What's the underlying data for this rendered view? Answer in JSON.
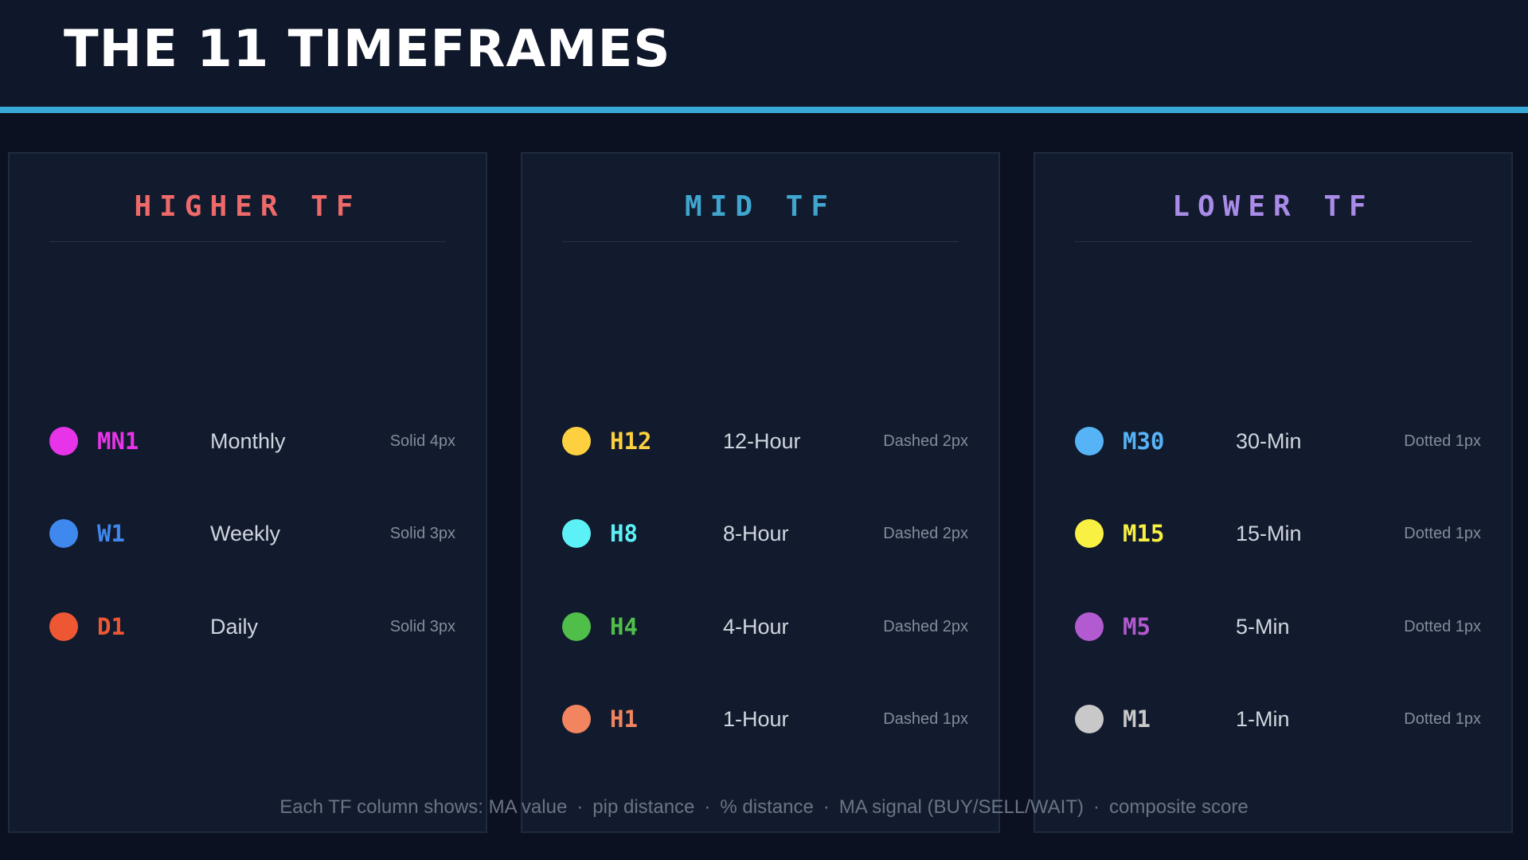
{
  "header": {
    "title": "THE 11 TIMEFRAMES"
  },
  "colors": {
    "accent_line": "#38a8d6",
    "background": "#0b1120",
    "panel": "#121a2d"
  },
  "groups": [
    {
      "title": "HIGHER TF",
      "title_color": "#ee6a6a",
      "items": [
        {
          "code": "MN1",
          "name": "Monthly",
          "style": "Solid 4px",
          "color": "#e834e8"
        },
        {
          "code": "W1",
          "name": "Weekly",
          "style": "Solid 3px",
          "color": "#3f88ee"
        },
        {
          "code": "D1",
          "name": "Daily",
          "style": "Solid 3px",
          "color": "#ee5733"
        }
      ]
    },
    {
      "title": "MID TF",
      "title_color": "#3fa6cf",
      "items": [
        {
          "code": "H12",
          "name": "12-Hour",
          "style": "Dashed 2px",
          "color": "#fdd03f"
        },
        {
          "code": "H8",
          "name": "8-Hour",
          "style": "Dashed 2px",
          "color": "#5cf1f6"
        },
        {
          "code": "H4",
          "name": "4-Hour",
          "style": "Dashed 2px",
          "color": "#4fbf49"
        },
        {
          "code": "H1",
          "name": "1-Hour",
          "style": "Dashed 1px",
          "color": "#f2845f"
        }
      ]
    },
    {
      "title": "LOWER TF",
      "title_color": "#a98be8",
      "items": [
        {
          "code": "M30",
          "name": "30-Min",
          "style": "Dotted 1px",
          "color": "#56b4f6"
        },
        {
          "code": "M15",
          "name": "15-Min",
          "style": "Dotted 1px",
          "color": "#f8f042"
        },
        {
          "code": "M5",
          "name": "5-Min",
          "style": "Dotted 1px",
          "color": "#b25ad0"
        },
        {
          "code": "M1",
          "name": "1-Min",
          "style": "Dotted 1px",
          "color": "#c8c8c8"
        }
      ]
    }
  ],
  "footer": {
    "parts": [
      "Each TF column shows: MA value",
      "pip distance",
      "% distance",
      "MA signal (BUY/SELL/WAIT)",
      "composite score"
    ],
    "separator": "·"
  }
}
